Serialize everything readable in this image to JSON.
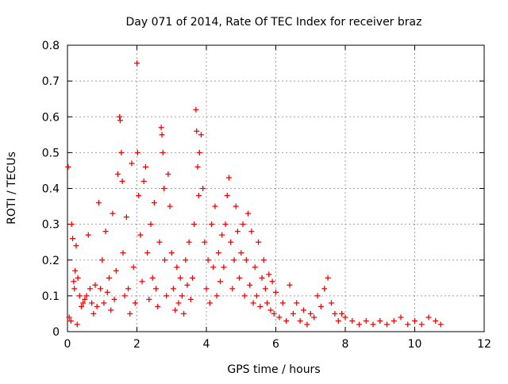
{
  "chart_data": {
    "type": "scatter",
    "title": "Day 071 of 2014, Rate Of TEC Index for receiver braz",
    "xlabel": "GPS time / hours",
    "ylabel": "ROTI / TECUs",
    "xlim": [
      0,
      12
    ],
    "ylim": [
      0,
      0.8
    ],
    "xticks": [
      0,
      2,
      4,
      6,
      8,
      10,
      12
    ],
    "yticks": [
      0,
      0.1,
      0.2,
      0.3,
      0.4,
      0.5,
      0.6,
      0.7,
      0.8
    ],
    "xtick_labels": [
      "0",
      "2",
      "4",
      "6",
      "8",
      "10",
      "12"
    ],
    "ytick_labels": [
      "0",
      "0.1",
      "0.2",
      "0.3",
      "0.4",
      "0.5",
      "0.6",
      "0.7",
      "0.8"
    ],
    "grid": true,
    "marker": "plus",
    "marker_color": "#ff0000",
    "series": [
      {
        "name": "braz",
        "points": [
          [
            0.02,
            0.46
          ],
          [
            0.05,
            0.04
          ],
          [
            0.1,
            0.03
          ],
          [
            0.12,
            0.3
          ],
          [
            0.15,
            0.26
          ],
          [
            0.18,
            0.14
          ],
          [
            0.2,
            0.12
          ],
          [
            0.22,
            0.17
          ],
          [
            0.25,
            0.24
          ],
          [
            0.28,
            0.02
          ],
          [
            0.3,
            0.15
          ],
          [
            0.35,
            0.1
          ],
          [
            0.4,
            0.07
          ],
          [
            0.45,
            0.08
          ],
          [
            0.5,
            0.09
          ],
          [
            0.55,
            0.1
          ],
          [
            0.6,
            0.27
          ],
          [
            0.65,
            0.12
          ],
          [
            0.7,
            0.08
          ],
          [
            0.75,
            0.05
          ],
          [
            0.8,
            0.13
          ],
          [
            0.85,
            0.07
          ],
          [
            0.9,
            0.36
          ],
          [
            0.95,
            0.12
          ],
          [
            1.0,
            0.2
          ],
          [
            1.05,
            0.08
          ],
          [
            1.1,
            0.28
          ],
          [
            1.15,
            0.11
          ],
          [
            1.2,
            0.15
          ],
          [
            1.25,
            0.06
          ],
          [
            1.3,
            0.33
          ],
          [
            1.35,
            0.09
          ],
          [
            1.4,
            0.17
          ],
          [
            1.45,
            0.44
          ],
          [
            1.5,
            0.6
          ],
          [
            1.52,
            0.59
          ],
          [
            1.55,
            0.5
          ],
          [
            1.58,
            0.42
          ],
          [
            1.6,
            0.22
          ],
          [
            1.65,
            0.1
          ],
          [
            1.7,
            0.32
          ],
          [
            1.75,
            0.12
          ],
          [
            1.8,
            0.05
          ],
          [
            1.85,
            0.47
          ],
          [
            1.9,
            0.18
          ],
          [
            1.95,
            0.08
          ],
          [
            2.0,
            0.75
          ],
          [
            2.02,
            0.5
          ],
          [
            2.05,
            0.38
          ],
          [
            2.1,
            0.27
          ],
          [
            2.15,
            0.14
          ],
          [
            2.2,
            0.42
          ],
          [
            2.25,
            0.46
          ],
          [
            2.3,
            0.22
          ],
          [
            2.35,
            0.09
          ],
          [
            2.4,
            0.3
          ],
          [
            2.45,
            0.15
          ],
          [
            2.5,
            0.36
          ],
          [
            2.55,
            0.12
          ],
          [
            2.6,
            0.07
          ],
          [
            2.65,
            0.25
          ],
          [
            2.7,
            0.57
          ],
          [
            2.72,
            0.55
          ],
          [
            2.75,
            0.5
          ],
          [
            2.78,
            0.4
          ],
          [
            2.8,
            0.2
          ],
          [
            2.85,
            0.1
          ],
          [
            2.9,
            0.44
          ],
          [
            2.95,
            0.35
          ],
          [
            3.0,
            0.22
          ],
          [
            3.05,
            0.12
          ],
          [
            3.1,
            0.06
          ],
          [
            3.15,
            0.18
          ],
          [
            3.2,
            0.08
          ],
          [
            3.25,
            0.15
          ],
          [
            3.3,
            0.1
          ],
          [
            3.35,
            0.05
          ],
          [
            3.4,
            0.2
          ],
          [
            3.45,
            0.13
          ],
          [
            3.5,
            0.25
          ],
          [
            3.55,
            0.09
          ],
          [
            3.6,
            0.15
          ],
          [
            3.65,
            0.3
          ],
          [
            3.7,
            0.62
          ],
          [
            3.72,
            0.56
          ],
          [
            3.75,
            0.46
          ],
          [
            3.78,
            0.38
          ],
          [
            3.8,
            0.5
          ],
          [
            3.85,
            0.55
          ],
          [
            3.9,
            0.4
          ],
          [
            3.95,
            0.25
          ],
          [
            4.0,
            0.12
          ],
          [
            4.05,
            0.2
          ],
          [
            4.1,
            0.08
          ],
          [
            4.15,
            0.3
          ],
          [
            4.2,
            0.18
          ],
          [
            4.25,
            0.35
          ],
          [
            4.3,
            0.1
          ],
          [
            4.35,
            0.22
          ],
          [
            4.4,
            0.14
          ],
          [
            4.45,
            0.27
          ],
          [
            4.5,
            0.18
          ],
          [
            4.55,
            0.3
          ],
          [
            4.6,
            0.38
          ],
          [
            4.65,
            0.43
          ],
          [
            4.7,
            0.25
          ],
          [
            4.75,
            0.12
          ],
          [
            4.8,
            0.2
          ],
          [
            4.85,
            0.35
          ],
          [
            4.9,
            0.28
          ],
          [
            4.95,
            0.15
          ],
          [
            5.0,
            0.22
          ],
          [
            5.05,
            0.3
          ],
          [
            5.1,
            0.1
          ],
          [
            5.15,
            0.2
          ],
          [
            5.2,
            0.33
          ],
          [
            5.25,
            0.13
          ],
          [
            5.3,
            0.28
          ],
          [
            5.35,
            0.08
          ],
          [
            5.4,
            0.18
          ],
          [
            5.45,
            0.1
          ],
          [
            5.5,
            0.25
          ],
          [
            5.55,
            0.07
          ],
          [
            5.6,
            0.15
          ],
          [
            5.65,
            0.2
          ],
          [
            5.7,
            0.12
          ],
          [
            5.75,
            0.08
          ],
          [
            5.8,
            0.16
          ],
          [
            5.85,
            0.06
          ],
          [
            5.9,
            0.14
          ],
          [
            5.95,
            0.05
          ],
          [
            6.0,
            0.11
          ],
          [
            6.1,
            0.04
          ],
          [
            6.2,
            0.08
          ],
          [
            6.3,
            0.03
          ],
          [
            6.4,
            0.13
          ],
          [
            6.5,
            0.05
          ],
          [
            6.6,
            0.08
          ],
          [
            6.7,
            0.03
          ],
          [
            6.8,
            0.06
          ],
          [
            6.9,
            0.02
          ],
          [
            7.0,
            0.05
          ],
          [
            7.1,
            0.04
          ],
          [
            7.2,
            0.1
          ],
          [
            7.3,
            0.07
          ],
          [
            7.4,
            0.12
          ],
          [
            7.5,
            0.15
          ],
          [
            7.6,
            0.08
          ],
          [
            7.7,
            0.05
          ],
          [
            7.8,
            0.03
          ],
          [
            7.9,
            0.05
          ],
          [
            8.0,
            0.04
          ],
          [
            8.2,
            0.03
          ],
          [
            8.4,
            0.02
          ],
          [
            8.6,
            0.03
          ],
          [
            8.8,
            0.02
          ],
          [
            9.0,
            0.03
          ],
          [
            9.2,
            0.02
          ],
          [
            9.4,
            0.03
          ],
          [
            9.6,
            0.04
          ],
          [
            9.8,
            0.02
          ],
          [
            10.0,
            0.03
          ],
          [
            10.2,
            0.02
          ],
          [
            10.4,
            0.04
          ],
          [
            10.6,
            0.03
          ],
          [
            10.75,
            0.02
          ]
        ]
      }
    ]
  }
}
